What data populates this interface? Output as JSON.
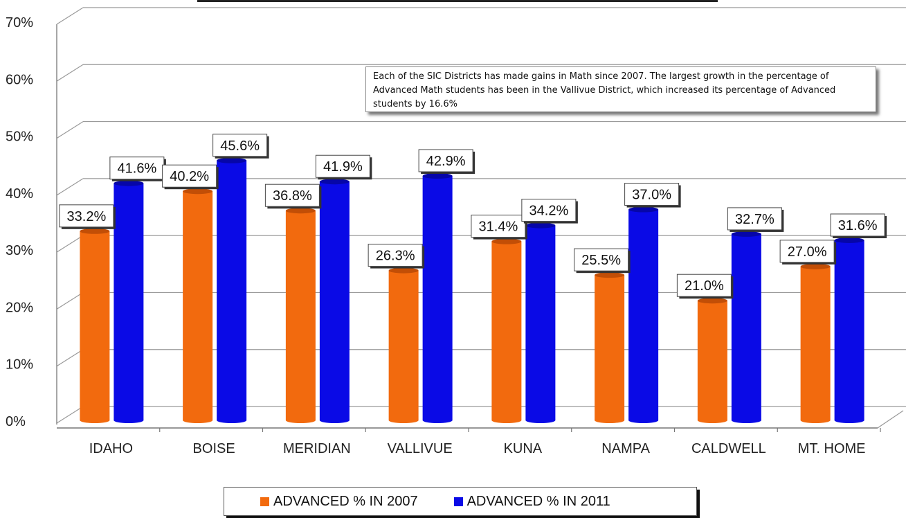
{
  "annotation": "Each of the SIC Districts has made gains in Math since 2007. The largest growth in the percentage of Advanced Math students has been in the Vallivue District, which increased its percentage of Advanced students by 16.6%",
  "legend": {
    "series_2007": "ADVANCED % IN 2007",
    "series_2011": "ADVANCED % IN 2011"
  },
  "colors": {
    "series_2007": "#F26A0E",
    "series_2011": "#0A0AE6"
  },
  "chart_data": {
    "type": "bar",
    "categories": [
      "IDAHO",
      "BOISE",
      "MERIDIAN",
      "VALLIVUE",
      "KUNA",
      "NAMPA",
      "CALDWELL",
      "MT. HOME"
    ],
    "series": [
      {
        "name": "ADVANCED % IN 2007",
        "values": [
          33.2,
          40.2,
          36.8,
          26.3,
          31.4,
          25.5,
          21.0,
          27.0
        ],
        "labels": [
          "33.2%",
          "40.2%",
          "36.8%",
          "26.3%",
          "31.4%",
          "25.5%",
          "21.0%",
          "27.0%"
        ]
      },
      {
        "name": "ADVANCED % IN 2011",
        "values": [
          41.6,
          45.6,
          41.9,
          42.9,
          34.2,
          37.0,
          32.7,
          31.6
        ],
        "labels": [
          "41.6%",
          "45.6%",
          "41.9%",
          "42.9%",
          "34.2%",
          "37.0%",
          "32.7%",
          "31.6%"
        ]
      }
    ],
    "yticks": [
      "0%",
      "10%",
      "20%",
      "30%",
      "40%",
      "50%",
      "60%",
      "70%"
    ],
    "ylim": [
      0,
      70
    ],
    "grid": true,
    "legend_position": "bottom"
  }
}
